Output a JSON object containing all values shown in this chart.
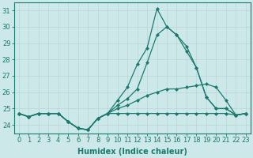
{
  "xlabel": "Humidex (Indice chaleur)",
  "x_values": [
    0,
    1,
    2,
    3,
    4,
    5,
    6,
    7,
    8,
    9,
    10,
    11,
    12,
    13,
    14,
    15,
    16,
    17,
    18,
    19,
    20,
    21,
    22,
    23
  ],
  "series": [
    [
      24.7,
      24.5,
      24.7,
      24.7,
      24.7,
      24.2,
      23.8,
      23.7,
      24.4,
      24.7,
      24.7,
      24.7,
      24.7,
      24.7,
      24.7,
      24.7,
      24.7,
      24.7,
      24.7,
      24.7,
      24.7,
      24.7,
      24.6,
      24.7
    ],
    [
      24.7,
      24.5,
      24.7,
      24.7,
      24.7,
      24.2,
      23.8,
      23.7,
      24.4,
      24.7,
      25.0,
      25.2,
      25.5,
      25.8,
      26.0,
      26.2,
      26.2,
      26.3,
      26.4,
      26.5,
      26.3,
      25.5,
      24.6,
      24.7
    ],
    [
      24.7,
      24.5,
      24.7,
      24.7,
      24.7,
      24.2,
      23.8,
      23.7,
      24.4,
      24.7,
      25.2,
      25.6,
      26.2,
      27.8,
      29.5,
      30.0,
      29.5,
      28.5,
      27.5,
      25.7,
      25.0,
      25.0,
      24.6,
      24.7
    ],
    [
      24.7,
      24.5,
      24.7,
      24.7,
      24.7,
      24.2,
      23.8,
      23.7,
      24.4,
      24.7,
      25.5,
      26.3,
      27.7,
      28.7,
      31.1,
      30.0,
      29.5,
      28.8,
      27.5,
      25.7,
      25.0,
      25.0,
      24.6,
      24.7
    ]
  ],
  "line_color": "#1a7a6e",
  "bg_color": "#cce8e8",
  "grid_color": "#b8d4d4",
  "ylim": [
    23.5,
    31.5
  ],
  "yticks": [
    24,
    25,
    26,
    27,
    28,
    29,
    30,
    31
  ],
  "xlim": [
    -0.5,
    23.5
  ],
  "marker": "D",
  "markersize": 2.0,
  "linewidth": 0.9,
  "xlabel_fontsize": 7,
  "tick_fontsize": 6
}
